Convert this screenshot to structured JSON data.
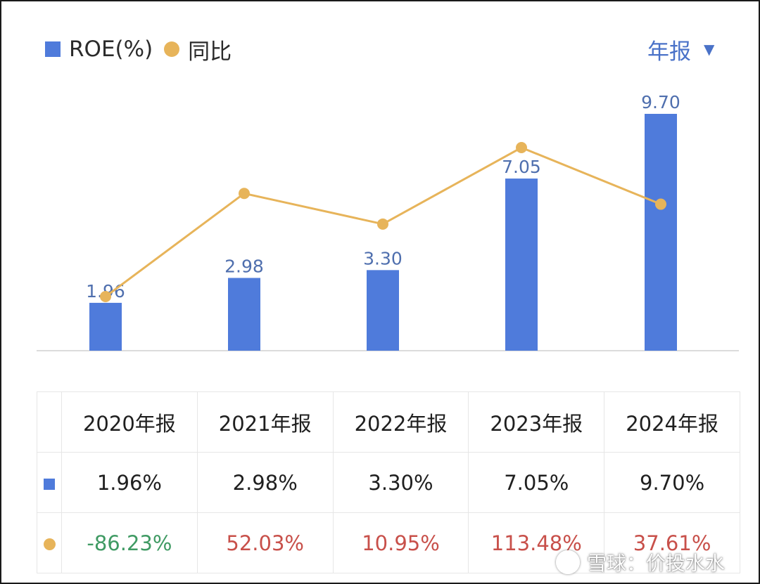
{
  "legend": {
    "roe_label": "ROE(%)",
    "yoy_label": "同比"
  },
  "period_selector": {
    "label": "年报",
    "caret": "▼"
  },
  "colors": {
    "bar": "#4f7bdb",
    "line": "#e7b45a",
    "bar_label": "#4f6fae",
    "negative": "#3f9a63",
    "positive": "#c8504a"
  },
  "chart_data": {
    "type": "bar",
    "categories": [
      "2020年报",
      "2021年报",
      "2022年报",
      "2023年报",
      "2024年报"
    ],
    "series": [
      {
        "name": "ROE(%)",
        "type": "bar",
        "values": [
          1.96,
          2.98,
          3.3,
          7.05,
          9.7
        ],
        "labels": [
          "1.96",
          "2.98",
          "3.30",
          "7.05",
          "9.70"
        ]
      },
      {
        "name": "同比",
        "type": "line",
        "values": [
          -86.23,
          52.03,
          10.95,
          113.48,
          37.61
        ]
      }
    ],
    "ylim": [
      0,
      9.7
    ],
    "y2lim": [
      -86.23,
      113.48
    ],
    "grid": false,
    "legend_position": "top-left"
  },
  "table": {
    "headers": [
      "2020年报",
      "2021年报",
      "2022年报",
      "2023年报",
      "2024年报"
    ],
    "roe_row": [
      "1.96%",
      "2.98%",
      "3.30%",
      "7.05%",
      "9.70%"
    ],
    "yoy_row": [
      "-86.23%",
      "52.03%",
      "10.95%",
      "113.48%",
      "37.61%"
    ],
    "yoy_sign": [
      "neg",
      "pos",
      "pos",
      "pos",
      "pos"
    ]
  },
  "watermark": {
    "text": "雪球：价投水水"
  }
}
